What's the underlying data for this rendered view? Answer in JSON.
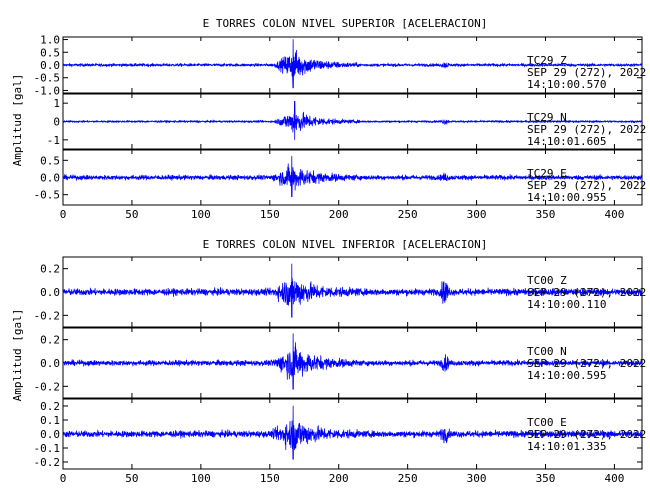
{
  "chart_data": [
    {
      "type": "line",
      "title": "E TORRES COLON NIVEL SUPERIOR [ACELERACION]",
      "ylabel": "Amplitud [gal]",
      "xlim": [
        0,
        420
      ],
      "xticks": [
        "0",
        "50",
        "100",
        "150",
        "200",
        "250",
        "300",
        "350",
        "400"
      ],
      "series": [
        {
          "name": "TC29 Z",
          "channel": "TC29 Z",
          "date": "SEP 29 (272), 2022",
          "time": "14:10:00.570",
          "ylim": [
            -1.1,
            1.1
          ],
          "yticks": [
            1.0,
            0.5,
            0.0,
            -0.5,
            -1.0
          ],
          "ytick_labels": [
            "1.0",
            "0.5",
            "0.0",
            "-0.5",
            "-1.0"
          ],
          "noise": 0.05,
          "peak": 1.0,
          "peak_t": 167,
          "event_start": 152,
          "event_end": 215,
          "spike_t": 277,
          "spike_amp": 0.12
        },
        {
          "name": "TC29 N",
          "channel": "TC29 N",
          "date": "SEP 29 (272), 2022",
          "time": "14:10:01.605",
          "ylim": [
            -1.5,
            1.5
          ],
          "yticks": [
            1.0,
            0.0,
            -1.0
          ],
          "ytick_labels": [
            "1",
            "0",
            "-1"
          ],
          "noise": 0.05,
          "peak": 1.1,
          "peak_t": 168,
          "event_start": 152,
          "event_end": 215,
          "spike_t": 277,
          "spike_amp": 0.15
        },
        {
          "name": "TC29 E",
          "channel": "TC29 E",
          "date": "SEP 29 (272), 2022",
          "time": "14:10:00.955",
          "ylim": [
            -0.8,
            0.8
          ],
          "yticks": [
            0.5,
            0.0,
            -0.5
          ],
          "ytick_labels": [
            "0.5",
            "0.0",
            "-0.5"
          ],
          "noise": 0.06,
          "peak": 0.62,
          "peak_t": 166,
          "event_start": 150,
          "event_end": 215,
          "spike_t": 277,
          "spike_amp": 0.1
        }
      ]
    },
    {
      "type": "line",
      "title": "E TORRES COLON NIVEL INFERIOR [ACELERACION]",
      "ylabel": "Amplitud [gal]",
      "xlim": [
        0,
        420
      ],
      "xticks": [
        "0",
        "50",
        "100",
        "150",
        "200",
        "250",
        "300",
        "350",
        "400"
      ],
      "series": [
        {
          "name": "TC00 Z",
          "channel": "TC00 Z",
          "date": "SEP 29 (272), 2022",
          "time": "14:10:00.110",
          "ylim": [
            -0.3,
            0.3
          ],
          "yticks": [
            0.2,
            0.0,
            -0.2
          ],
          "ytick_labels": [
            "0.2",
            "0.0",
            "-0.2"
          ],
          "noise": 0.025,
          "peak": 0.24,
          "peak_t": 166,
          "event_start": 150,
          "event_end": 215,
          "spike_t": 277,
          "spike_amp": 0.14
        },
        {
          "name": "TC00 N",
          "channel": "TC00 N",
          "date": "SEP 29 (272), 2022",
          "time": "14:10:00.595",
          "ylim": [
            -0.3,
            0.3
          ],
          "yticks": [
            0.2,
            0.0,
            -0.2
          ],
          "ytick_labels": [
            "0.2",
            "0.0",
            "-0.2"
          ],
          "noise": 0.02,
          "peak": 0.25,
          "peak_t": 167,
          "event_start": 150,
          "event_end": 215,
          "spike_t": 277,
          "spike_amp": 0.08
        },
        {
          "name": "TC00 E",
          "channel": "TC00 E",
          "date": "SEP 29 (272), 2022",
          "time": "14:10:01.335",
          "ylim": [
            -0.25,
            0.25
          ],
          "yticks": [
            0.2,
            0.1,
            0.0,
            -0.1,
            -0.2
          ],
          "ytick_labels": [
            "0.2",
            "0.1",
            "0.0",
            "-0.1",
            "-0.2"
          ],
          "noise": 0.02,
          "peak": 0.2,
          "peak_t": 167,
          "event_start": 150,
          "event_end": 215,
          "spike_t": 277,
          "spike_amp": 0.06
        }
      ]
    }
  ],
  "colors": {
    "trace": "#0000ff",
    "axes": "#000000",
    "background": "#ffffff"
  }
}
